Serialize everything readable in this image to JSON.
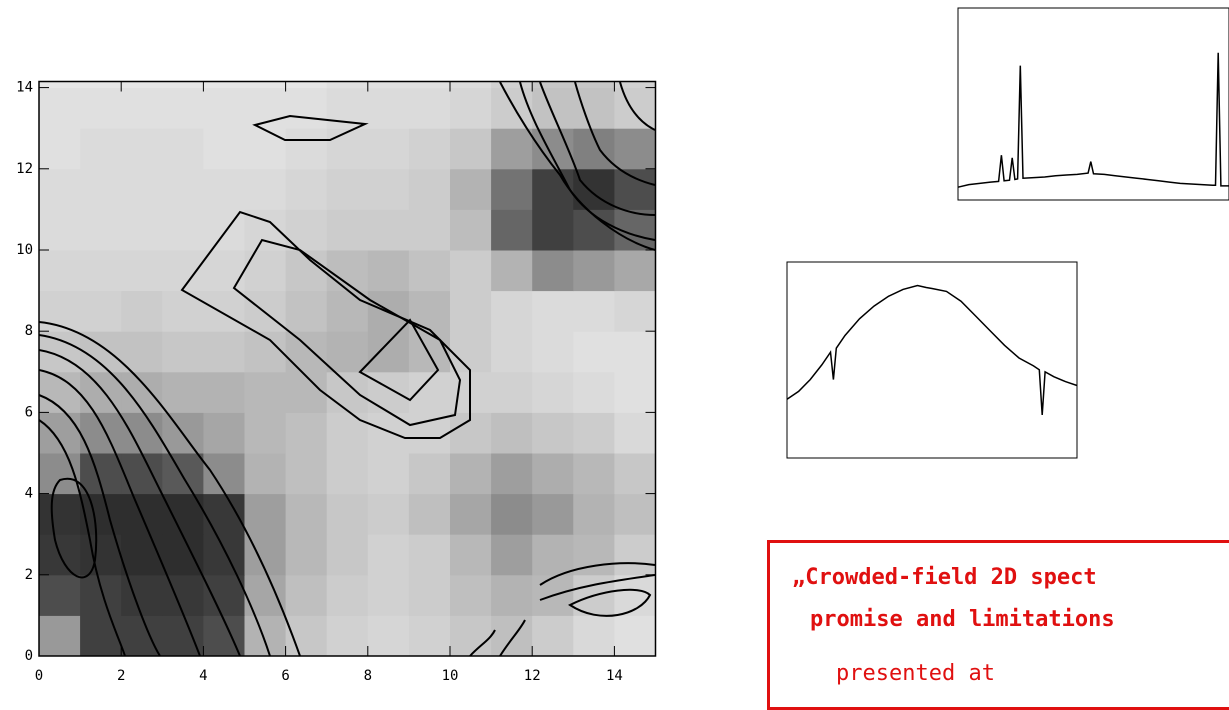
{
  "chart_data": [
    {
      "type": "heatmap",
      "xlim": [
        0,
        15
      ],
      "ylim": [
        0,
        14.15
      ],
      "zlim": [
        0,
        100
      ],
      "xticks": [
        0,
        2,
        4,
        6,
        8,
        10,
        12,
        14
      ],
      "yticks": [
        0,
        2,
        4,
        6,
        8,
        10,
        12,
        14
      ],
      "z": [
        [
          60,
          25,
          25,
          25,
          30,
          70,
          78,
          82,
          84,
          82,
          78,
          75,
          80,
          85,
          88
        ],
        [
          30,
          25,
          22,
          22,
          25,
          65,
          75,
          80,
          82,
          80,
          75,
          70,
          72,
          80,
          85
        ],
        [
          22,
          20,
          18,
          18,
          22,
          62,
          72,
          78,
          82,
          80,
          72,
          62,
          70,
          72,
          80
        ],
        [
          20,
          18,
          18,
          18,
          22,
          62,
          72,
          78,
          80,
          75,
          65,
          55,
          60,
          70,
          75
        ],
        [
          55,
          30,
          30,
          35,
          55,
          70,
          75,
          80,
          82,
          78,
          70,
          62,
          68,
          72,
          78
        ],
        [
          62,
          55,
          55,
          60,
          65,
          72,
          75,
          80,
          82,
          82,
          78,
          75,
          78,
          80,
          85
        ],
        [
          72,
          68,
          68,
          70,
          70,
          72,
          72,
          78,
          80,
          82,
          82,
          82,
          84,
          86,
          88
        ],
        [
          78,
          76,
          76,
          78,
          78,
          76,
          72,
          70,
          68,
          72,
          80,
          84,
          86,
          88,
          88
        ],
        [
          82,
          82,
          80,
          82,
          82,
          80,
          76,
          72,
          68,
          72,
          80,
          84,
          86,
          86,
          84
        ],
        [
          84,
          84,
          84,
          84,
          84,
          82,
          78,
          74,
          72,
          76,
          80,
          70,
          55,
          60,
          66
        ],
        [
          86,
          86,
          86,
          86,
          86,
          84,
          82,
          80,
          80,
          80,
          74,
          40,
          25,
          30,
          40
        ],
        [
          86,
          86,
          86,
          86,
          86,
          86,
          84,
          82,
          82,
          80,
          70,
          45,
          25,
          20,
          30
        ],
        [
          88,
          86,
          86,
          86,
          88,
          88,
          86,
          84,
          84,
          82,
          78,
          62,
          55,
          50,
          55
        ],
        [
          88,
          88,
          88,
          88,
          88,
          88,
          88,
          86,
          86,
          86,
          84,
          80,
          76,
          76,
          80
        ],
        [
          90,
          90,
          90,
          90,
          90,
          90,
          90,
          88,
          88,
          88,
          86,
          82,
          78,
          78,
          82
        ]
      ]
    },
    {
      "type": "line",
      "xlim": [
        0,
        100
      ],
      "ylim": [
        0,
        1500
      ],
      "x": [
        0,
        4,
        8,
        12,
        15,
        16,
        17,
        19,
        20,
        21,
        22,
        23,
        24,
        28,
        32,
        36,
        40,
        44,
        48,
        49,
        50,
        54,
        58,
        62,
        66,
        70,
        74,
        78,
        82,
        86,
        90,
        94,
        95,
        96,
        97,
        100
      ],
      "values": [
        100,
        120,
        130,
        140,
        145,
        350,
        150,
        155,
        330,
        160,
        165,
        1050,
        170,
        175,
        180,
        190,
        195,
        200,
        210,
        300,
        205,
        200,
        190,
        180,
        170,
        160,
        150,
        140,
        130,
        125,
        120,
        115,
        115,
        1150,
        110,
        110
      ]
    },
    {
      "type": "line",
      "xlim": [
        0,
        100
      ],
      "ylim": [
        0,
        2000
      ],
      "x": [
        0,
        4,
        8,
        12,
        15,
        16,
        17,
        20,
        25,
        30,
        35,
        40,
        45,
        48,
        50,
        55,
        60,
        65,
        70,
        75,
        80,
        85,
        87,
        88,
        89,
        92,
        96,
        100
      ],
      "values": [
        600,
        680,
        800,
        950,
        1080,
        800,
        1120,
        1250,
        1420,
        1550,
        1650,
        1720,
        1760,
        1740,
        1730,
        1700,
        1600,
        1450,
        1300,
        1150,
        1020,
        940,
        900,
        440,
        880,
        830,
        780,
        740
      ]
    }
  ],
  "text_box": {
    "lines": [
      "„Crowded-field 2D spect",
      "promise and limitations",
      "presented at"
    ]
  }
}
